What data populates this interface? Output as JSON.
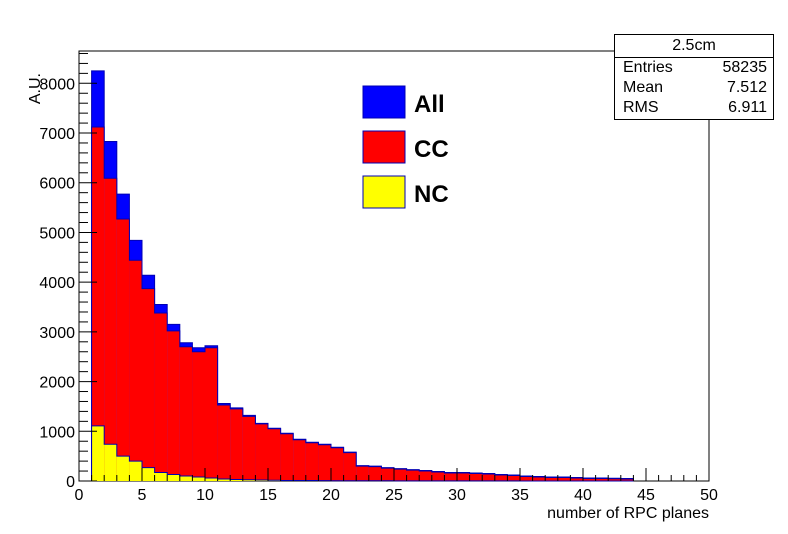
{
  "chart_data": {
    "type": "histogram",
    "xlabel": "number of RPC planes",
    "ylabel": "A.U.",
    "xlim": [
      0,
      50
    ],
    "ylim": [
      0,
      8650
    ],
    "x_ticks": [
      "0",
      "5",
      "10",
      "15",
      "20",
      "25",
      "30",
      "35",
      "40",
      "45",
      "50"
    ],
    "y_ticks": [
      "0",
      "1000",
      "2000",
      "3000",
      "4000",
      "5000",
      "6000",
      "7000",
      "8000"
    ],
    "bin_edges_start": 1,
    "bin_width": 1,
    "legend_position": "top-center",
    "series": [
      {
        "name": "All",
        "color": "#0000ff",
        "values": [
          8250,
          6830,
          5770,
          4840,
          4140,
          3550,
          3150,
          2780,
          2680,
          2720,
          1560,
          1470,
          1320,
          1160,
          1060,
          960,
          840,
          780,
          740,
          680,
          580,
          310,
          300,
          270,
          250,
          230,
          210,
          190,
          170,
          170,
          160,
          150,
          130,
          120,
          100,
          90,
          80,
          80,
          70,
          60,
          60,
          55,
          50
        ]
      },
      {
        "name": "CC",
        "color": "#ff0000",
        "values": [
          7120,
          6090,
          5270,
          4440,
          3870,
          3380,
          3020,
          2700,
          2600,
          2680,
          1530,
          1450,
          1300,
          1150,
          1050,
          950,
          830,
          770,
          730,
          670,
          570,
          300,
          290,
          260,
          240,
          220,
          200,
          180,
          160,
          160,
          150,
          140,
          120,
          110,
          90,
          80,
          70,
          70,
          60,
          50,
          50,
          45,
          40
        ]
      },
      {
        "name": "NC",
        "color": "#ffff00",
        "values": [
          1110,
          740,
          500,
          400,
          270,
          170,
          130,
          100,
          80,
          60,
          40,
          30,
          25,
          20,
          15,
          10,
          10,
          10,
          8,
          6,
          5,
          5,
          4,
          4,
          3,
          3,
          3,
          3,
          2,
          2,
          2,
          2,
          2,
          2,
          1,
          1,
          1,
          1,
          1,
          1,
          1,
          1,
          1
        ]
      }
    ]
  },
  "stats": {
    "title": "2.5cm",
    "rows": [
      {
        "label": "Entries",
        "value": "58235"
      },
      {
        "label": "Mean",
        "value": "7.512"
      },
      {
        "label": "RMS",
        "value": "6.911"
      }
    ]
  }
}
